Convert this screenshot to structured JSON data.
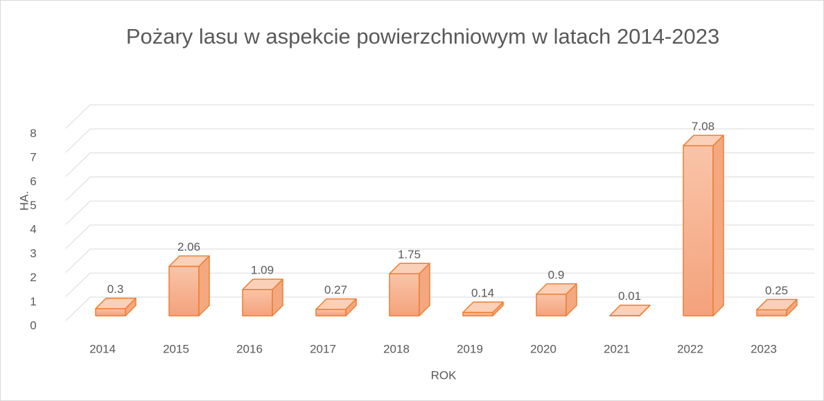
{
  "chart_data": {
    "type": "bar3d",
    "title": "Pożary lasu w aspekcie powierzchniowym w latach 2014-2023",
    "x_label": "ROK",
    "y_label": "HA.",
    "categories": [
      "2014",
      "2015",
      "2016",
      "2017",
      "2018",
      "2019",
      "2020",
      "2021",
      "2022",
      "2023"
    ],
    "values": [
      0.3,
      2.06,
      1.09,
      0.27,
      1.75,
      0.14,
      0.9,
      0.01,
      7.08,
      0.25
    ],
    "color": "#ed7d31",
    "ylim": [
      0,
      8
    ],
    "yticks": [
      0,
      1,
      2,
      3,
      4,
      5,
      6,
      7,
      8
    ],
    "grid": true
  }
}
